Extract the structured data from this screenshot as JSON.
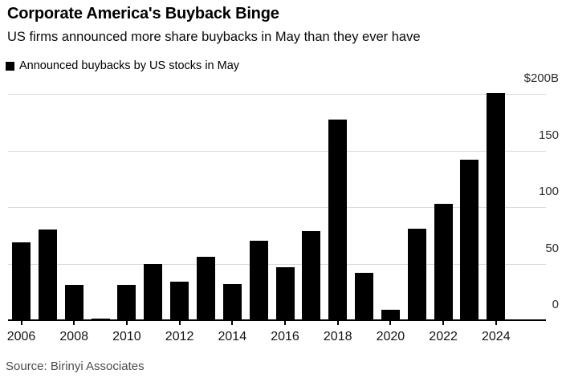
{
  "header": {
    "title": "Corporate America's Buyback Binge",
    "subtitle": "US firms announced more share buybacks in May than they ever have"
  },
  "legend": {
    "label": "Announced buybacks by US stocks in May",
    "swatch_color": "#000000"
  },
  "source": "Source: Birinyi Associates",
  "chart_data": {
    "type": "bar",
    "title": "Announced buybacks by US stocks in May",
    "unit": "billions of US dollars",
    "categories": [
      "2006",
      "2007",
      "2008",
      "2009",
      "2010",
      "2011",
      "2012",
      "2013",
      "2014",
      "2015",
      "2016",
      "2017",
      "2018",
      "2019",
      "2020",
      "2021",
      "2022",
      "2023",
      "2024"
    ],
    "values": [
      69,
      80,
      31,
      1.5,
      31,
      50,
      34,
      56,
      32,
      70,
      47,
      79,
      177,
      42,
      9,
      81,
      103,
      142,
      201
    ],
    "yticks": [
      {
        "value": 200,
        "label": "$200B"
      },
      {
        "value": 150,
        "label": "150"
      },
      {
        "value": 100,
        "label": "100"
      },
      {
        "value": 50,
        "label": "50"
      },
      {
        "value": 0,
        "label": "0"
      }
    ],
    "xticks": [
      "2006",
      "2008",
      "2010",
      "2012",
      "2014",
      "2016",
      "2018",
      "2020",
      "2022",
      "2024"
    ],
    "ylim": [
      0,
      200
    ],
    "grid": true,
    "legend_position": "top-left",
    "y_axis_side": "right",
    "bar_color": "#000000",
    "grid_color": "#d9d9d9",
    "axis_color": "#000000"
  }
}
